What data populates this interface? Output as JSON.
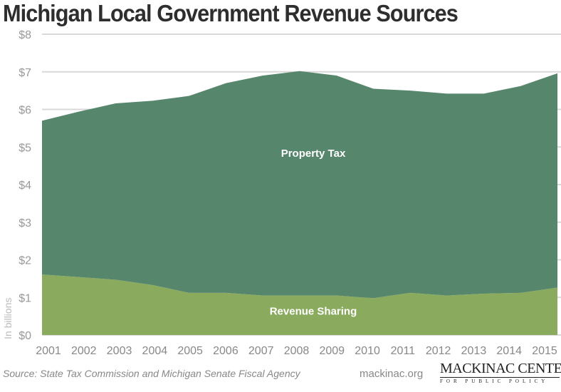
{
  "chart_data": {
    "type": "area",
    "stacked": true,
    "title": "Michigan Local Government Revenue Sources",
    "ylabel": "In billions",
    "ylim": [
      0,
      8
    ],
    "yticks": [
      "$0",
      "$1",
      "$2",
      "$3",
      "$4",
      "$5",
      "$6",
      "$7",
      "$8"
    ],
    "grid": true,
    "categories": [
      "2001",
      "2002",
      "2003",
      "2004",
      "2005",
      "2006",
      "2007",
      "2008",
      "2009",
      "2010",
      "2011",
      "2012",
      "2013",
      "2014",
      "2015"
    ],
    "series": [
      {
        "name": "Revenue Sharing",
        "color": "#8aaa5e",
        "values": [
          1.61,
          1.54,
          1.47,
          1.33,
          1.12,
          1.12,
          1.05,
          1.05,
          1.05,
          0.98,
          1.12,
          1.05,
          1.1,
          1.12,
          1.26
        ]
      },
      {
        "name": "Property Tax",
        "color": "#56876d",
        "values": [
          4.09,
          4.4,
          4.69,
          4.9,
          5.24,
          5.58,
          5.85,
          5.97,
          5.85,
          5.57,
          5.38,
          5.37,
          5.32,
          5.5,
          5.7
        ]
      }
    ]
  },
  "footer": {
    "source": "Source: State Tax Commission and Michigan Senate Fiscal Agency",
    "site": "mackinac.org",
    "logo_line1": "MACKINAC CENTER",
    "logo_line2": "FOR PUBLIC POLICY"
  }
}
